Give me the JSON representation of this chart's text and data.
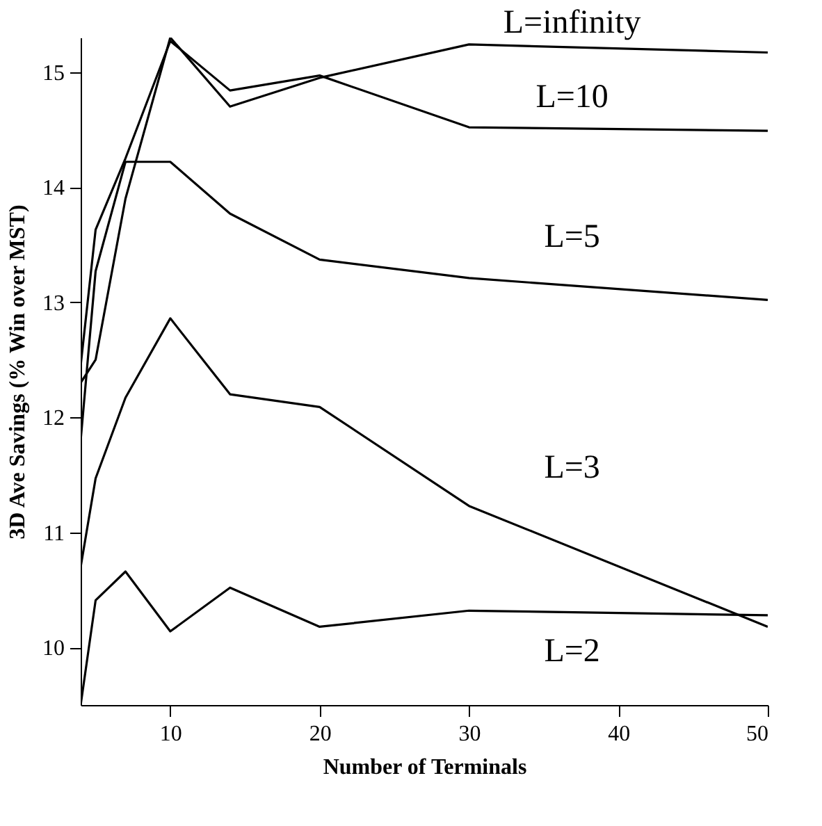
{
  "chart_data": {
    "type": "line",
    "xlabel": "Number of Terminals",
    "ylabel": "3D Ave Savings (% Win over MST)",
    "x": [
      4,
      5,
      7,
      10,
      14,
      20,
      30,
      50
    ],
    "series": [
      {
        "name": "L=infinity",
        "color": "#000000",
        "values": [
          12.3,
          12.5,
          13.9,
          15.3,
          14.7,
          14.95,
          15.24,
          15.17
        ]
      },
      {
        "name": "L=10",
        "color": "#000000",
        "values": [
          12.45,
          13.63,
          14.25,
          15.27,
          14.84,
          14.97,
          14.52,
          14.49
        ]
      },
      {
        "name": "L=5",
        "color": "#000000",
        "values": [
          11.8,
          13.27,
          14.22,
          14.22,
          13.77,
          13.37,
          13.21,
          13.02
        ]
      },
      {
        "name": "L=3",
        "color": "#000000",
        "values": [
          10.7,
          11.47,
          12.17,
          12.86,
          12.2,
          12.09,
          11.23,
          10.18
        ]
      },
      {
        "name": "L=2",
        "color": "#000000",
        "values": [
          9.5,
          10.41,
          10.66,
          10.14,
          10.52,
          10.18,
          10.32,
          10.28
        ]
      }
    ],
    "xlim": [
      4,
      50
    ],
    "xticks": [
      10,
      20,
      30,
      40,
      50
    ],
    "ylim": [
      9.5,
      15.3
    ],
    "yticks": [
      10,
      11,
      12,
      13,
      14,
      15
    ],
    "grid": false,
    "legend": false,
    "marker": "none",
    "line_style": "solid"
  }
}
